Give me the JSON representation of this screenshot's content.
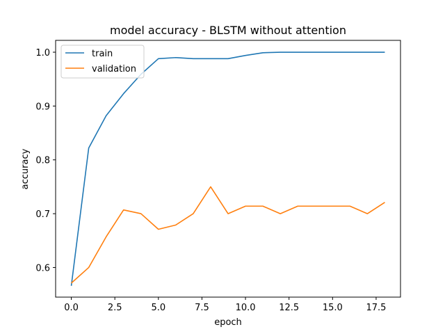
{
  "chart_data": {
    "type": "line",
    "title": "model accuracy - BLSTM without attention",
    "xlabel": "epoch",
    "ylabel": "accuracy",
    "xlim": [
      -0.9,
      18.9
    ],
    "ylim": [
      0.545,
      1.022
    ],
    "xticks": [
      0.0,
      2.5,
      5.0,
      7.5,
      10.0,
      12.5,
      15.0,
      17.5
    ],
    "xtick_labels": [
      "0.0",
      "2.5",
      "5.0",
      "7.5",
      "10.0",
      "12.5",
      "15.0",
      "17.5"
    ],
    "yticks": [
      0.6,
      0.7,
      0.8,
      0.9,
      1.0
    ],
    "ytick_labels": [
      "0.6",
      "0.7",
      "0.8",
      "0.9",
      "1.0"
    ],
    "grid": false,
    "legend_position": "top-left",
    "x": [
      0,
      1,
      2,
      3,
      4,
      5,
      6,
      7,
      8,
      9,
      10,
      11,
      12,
      13,
      14,
      15,
      16,
      17,
      18
    ],
    "series": [
      {
        "name": "train",
        "color": "#1f77b4",
        "values": [
          0.566,
          0.822,
          0.882,
          0.923,
          0.959,
          0.988,
          0.99,
          0.988,
          0.988,
          0.988,
          0.994,
          0.999,
          1.0,
          1.0,
          1.0,
          1.0,
          1.0,
          1.0,
          1.0
        ]
      },
      {
        "name": "validation",
        "color": "#ff7f0e",
        "values": [
          0.571,
          0.6,
          0.657,
          0.707,
          0.7,
          0.671,
          0.679,
          0.7,
          0.75,
          0.7,
          0.714,
          0.714,
          0.7,
          0.714,
          0.714,
          0.714,
          0.714,
          0.7,
          0.721
        ]
      }
    ]
  }
}
